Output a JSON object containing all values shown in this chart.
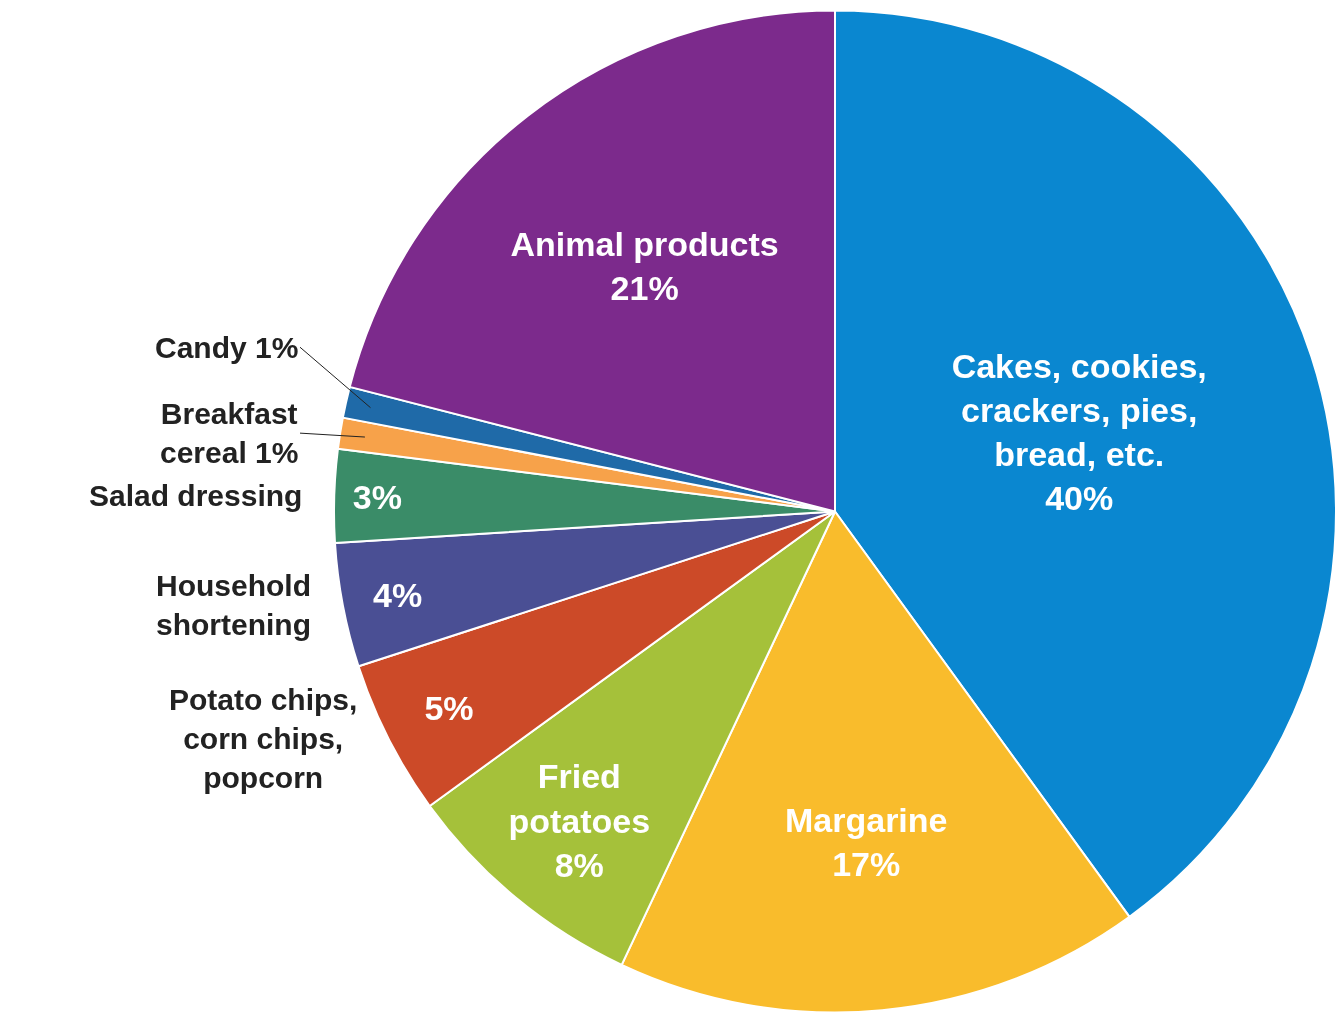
{
  "chart_data": {
    "type": "pie",
    "categories": [
      "Cakes, cookies,\ncrackers, pies,\nbread, etc.",
      "Margarine",
      "Fried\npotatoes",
      "Potato chips,\ncorn chips,\npopcorn",
      "Household\nshortening",
      "Salad dressing",
      "Breakfast\ncereal",
      "Candy",
      "Animal products"
    ],
    "values": [
      40,
      17,
      8,
      5,
      4,
      3,
      1,
      1,
      21
    ],
    "colors": [
      "#0a87d0",
      "#f9bc2c",
      "#a5c13a",
      "#cc4a28",
      "#4a4f94",
      "#3a8c68",
      "#f7a24a",
      "#1f6aa8",
      "#7c2a8c"
    ],
    "value_labels": [
      "40%",
      "17%",
      "8%",
      "5%",
      "4%",
      "3%",
      "1%",
      "1%",
      "21%"
    ],
    "legend": false
  }
}
